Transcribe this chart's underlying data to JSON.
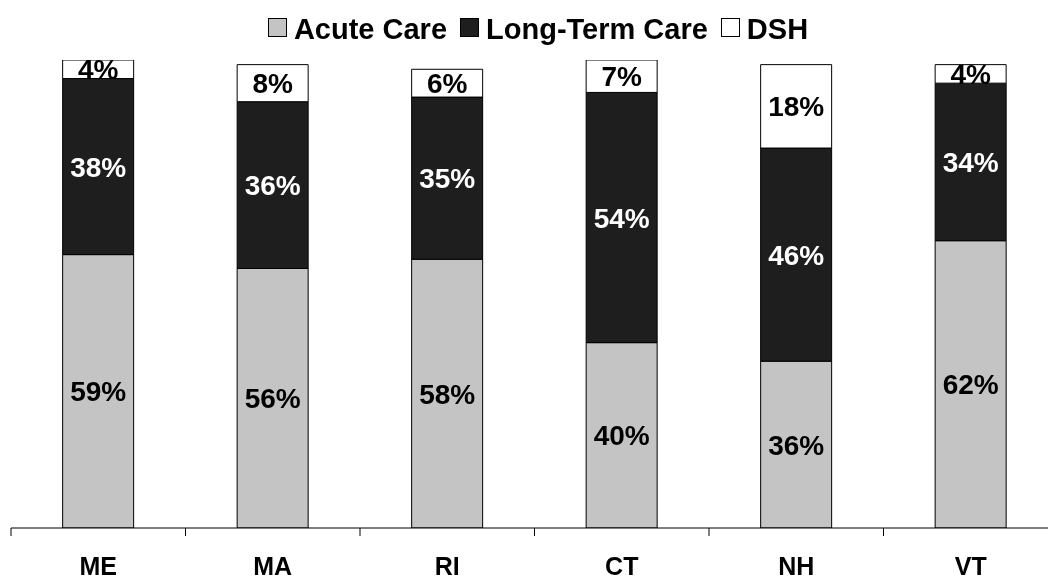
{
  "chart_data": {
    "type": "bar",
    "stacked": true,
    "categories": [
      "ME",
      "MA",
      "RI",
      "CT",
      "NH",
      "VT"
    ],
    "series": [
      {
        "name": "Acute Care",
        "color": "#c4c4c4",
        "values": [
          59,
          56,
          58,
          40,
          36,
          62
        ],
        "value_labels": [
          "59%",
          "56%",
          "58%",
          "40%",
          "36%",
          "62%"
        ]
      },
      {
        "name": "Long-Term Care",
        "color": "#1e1e1e",
        "values": [
          38,
          36,
          35,
          54,
          46,
          34
        ],
        "value_labels": [
          "38%",
          "36%",
          "35%",
          "54%",
          "46%",
          "34%"
        ]
      },
      {
        "name": "DSH",
        "color": "#ffffff",
        "values": [
          4,
          8,
          6,
          7,
          18,
          4
        ],
        "value_labels": [
          "4%",
          "8%",
          "6%",
          "7%",
          "18%",
          "4%"
        ]
      }
    ],
    "legend": "top",
    "tick_labels": "x"
  }
}
